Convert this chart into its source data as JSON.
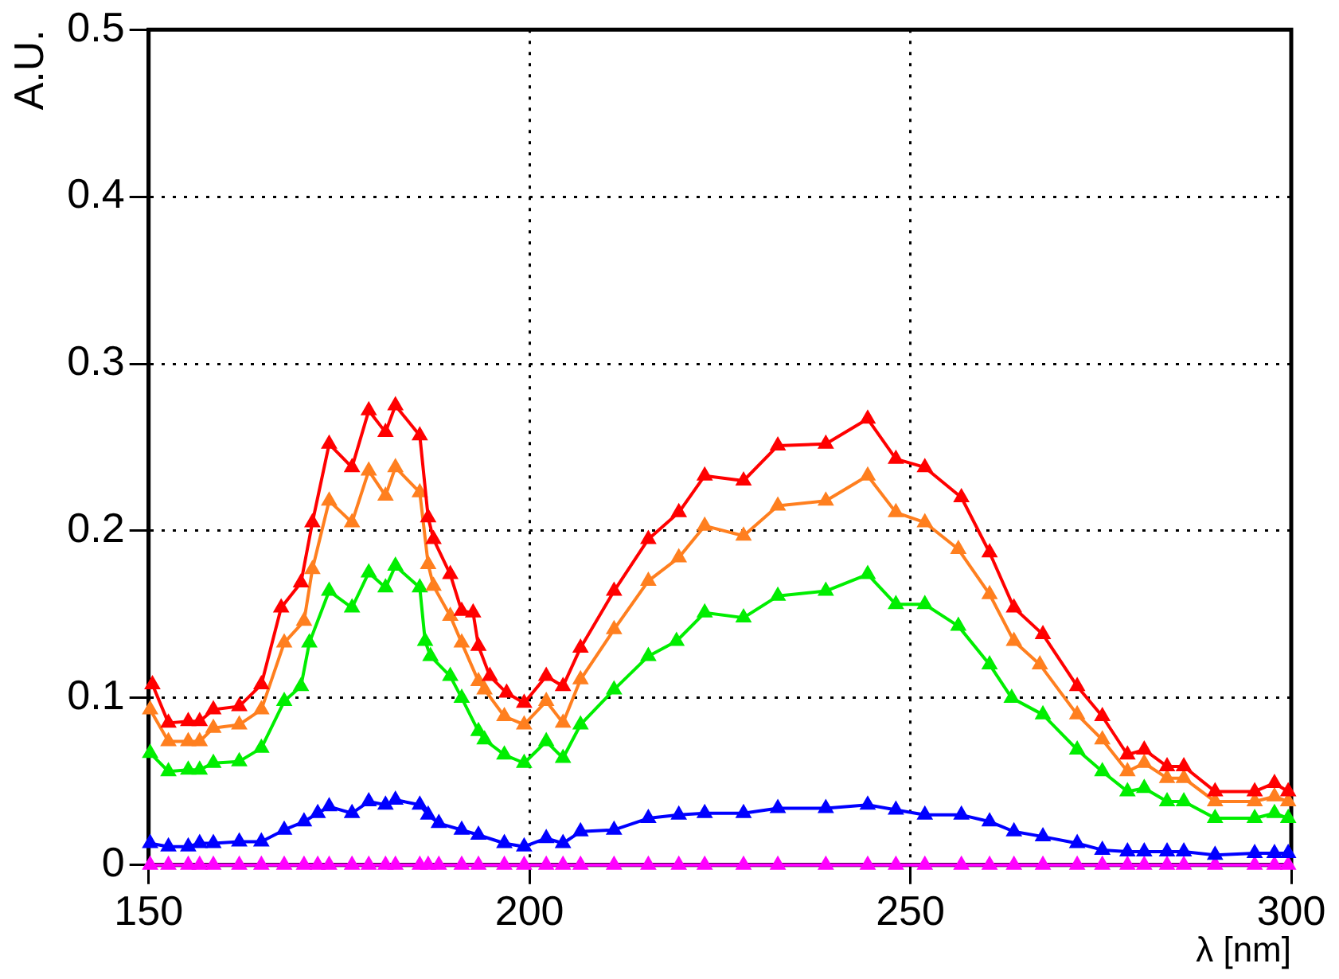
{
  "chart_data": {
    "type": "line",
    "xlabel": "λ [nm]",
    "ylabel": "A.U.",
    "xlim": [
      150,
      300
    ],
    "xticks": [
      150,
      200,
      250,
      300
    ],
    "ylim": [
      0,
      0.5
    ],
    "yticks": [
      0,
      0.1,
      0.2,
      0.3,
      0.4,
      0.5
    ],
    "grid": true,
    "legend": false,
    "marker": "triangle",
    "line_style": "solid",
    "series": [
      {
        "color": "#ff0000",
        "x": [
          150.5,
          152.6,
          155.2,
          156.7,
          158.5,
          161.9,
          164.8,
          167.4,
          170,
          171.5,
          173.7,
          176.7,
          178.9,
          181.1,
          182.4,
          185.6,
          186.7,
          187.4,
          189.6,
          191.1,
          192.6,
          193.3,
          194.8,
          197,
          199.3,
          202.2,
          204.4,
          206.7,
          211.1,
          215.6,
          219.6,
          223,
          228.1,
          232.6,
          238.9,
          244.4,
          248.1,
          251.9,
          256.7,
          260.4,
          263.6,
          267.4,
          271.9,
          275.2,
          278.5,
          280.7,
          283.7,
          285.9,
          290,
          295.2,
          297.8,
          299.6
        ],
        "values": [
          0.108,
          0.085,
          0.086,
          0.086,
          0.093,
          0.095,
          0.108,
          0.154,
          0.169,
          0.205,
          0.252,
          0.238,
          0.272,
          0.259,
          0.275,
          0.257,
          0.208,
          0.195,
          0.174,
          0.152,
          0.151,
          0.131,
          0.113,
          0.103,
          0.097,
          0.113,
          0.107,
          0.13,
          0.164,
          0.195,
          0.211,
          0.233,
          0.23,
          0.251,
          0.252,
          0.267,
          0.243,
          0.238,
          0.22,
          0.187,
          0.154,
          0.138,
          0.107,
          0.089,
          0.066,
          0.069,
          0.059,
          0.059,
          0.044,
          0.044,
          0.049,
          0.044
        ]
      },
      {
        "color": "#ff7f1f",
        "x": [
          150.2,
          152.6,
          155.2,
          156.7,
          158.5,
          161.9,
          164.8,
          167.8,
          170.4,
          171.5,
          173.7,
          176.7,
          178.9,
          181.1,
          182.4,
          185.6,
          186.7,
          187.4,
          189.6,
          191.1,
          193.3,
          194.1,
          196.7,
          199.3,
          202.2,
          204.4,
          206.7,
          211.1,
          215.6,
          219.6,
          223,
          228.1,
          232.6,
          238.9,
          244.4,
          248.1,
          251.9,
          256.3,
          260.4,
          263.6,
          267,
          271.9,
          275.2,
          278.5,
          280.7,
          283.7,
          285.9,
          290,
          295.2,
          297.8,
          299.6
        ],
        "values": [
          0.093,
          0.074,
          0.074,
          0.074,
          0.082,
          0.084,
          0.093,
          0.133,
          0.146,
          0.177,
          0.218,
          0.205,
          0.236,
          0.221,
          0.238,
          0.223,
          0.18,
          0.167,
          0.149,
          0.133,
          0.11,
          0.105,
          0.089,
          0.084,
          0.098,
          0.085,
          0.111,
          0.141,
          0.17,
          0.184,
          0.203,
          0.197,
          0.215,
          0.218,
          0.233,
          0.211,
          0.205,
          0.189,
          0.162,
          0.134,
          0.12,
          0.09,
          0.075,
          0.056,
          0.061,
          0.052,
          0.052,
          0.038,
          0.038,
          0.041,
          0.038
        ]
      },
      {
        "color": "#00ee00",
        "x": [
          150.2,
          152.6,
          155.2,
          156.7,
          158.5,
          161.9,
          164.8,
          167.8,
          170,
          171.1,
          173.7,
          176.7,
          178.9,
          181.1,
          182.4,
          185.6,
          186.3,
          187,
          189.6,
          191.1,
          193.3,
          194.1,
          196.7,
          199.3,
          202.2,
          204.4,
          206.7,
          211.1,
          215.6,
          219.3,
          223,
          228.1,
          232.6,
          238.9,
          244.4,
          248.1,
          251.9,
          256.3,
          260.4,
          263.3,
          267.4,
          271.9,
          275.2,
          278.5,
          280.7,
          283.7,
          285.9,
          290,
          295.2,
          297.8,
          299.6
        ],
        "values": [
          0.067,
          0.056,
          0.057,
          0.057,
          0.061,
          0.062,
          0.07,
          0.098,
          0.107,
          0.133,
          0.164,
          0.154,
          0.175,
          0.166,
          0.179,
          0.166,
          0.134,
          0.125,
          0.113,
          0.1,
          0.08,
          0.075,
          0.066,
          0.061,
          0.074,
          0.064,
          0.084,
          0.105,
          0.125,
          0.134,
          0.151,
          0.148,
          0.161,
          0.164,
          0.174,
          0.156,
          0.156,
          0.143,
          0.12,
          0.1,
          0.09,
          0.069,
          0.056,
          0.044,
          0.046,
          0.038,
          0.038,
          0.028,
          0.028,
          0.031,
          0.028
        ]
      },
      {
        "color": "#0000ff",
        "x": [
          150.2,
          152.6,
          155.2,
          156.7,
          158.5,
          161.9,
          164.8,
          167.8,
          170.4,
          172.2,
          173.7,
          176.7,
          178.9,
          181.1,
          182.4,
          185.6,
          186.7,
          188.1,
          191.1,
          193.3,
          196.7,
          199.3,
          202.2,
          204.4,
          206.7,
          211.1,
          215.6,
          219.6,
          223,
          228.1,
          232.6,
          238.9,
          244.4,
          248.1,
          251.9,
          256.7,
          260.4,
          263.6,
          267.4,
          271.9,
          275.2,
          278.5,
          280.7,
          283.7,
          285.9,
          290,
          295.2,
          297.8,
          299.6
        ],
        "values": [
          0.013,
          0.011,
          0.011,
          0.013,
          0.013,
          0.014,
          0.014,
          0.021,
          0.026,
          0.031,
          0.035,
          0.031,
          0.038,
          0.036,
          0.039,
          0.036,
          0.03,
          0.025,
          0.021,
          0.018,
          0.013,
          0.011,
          0.016,
          0.013,
          0.02,
          0.021,
          0.028,
          0.03,
          0.031,
          0.031,
          0.034,
          0.034,
          0.036,
          0.033,
          0.03,
          0.03,
          0.026,
          0.02,
          0.017,
          0.013,
          0.009,
          0.008,
          0.008,
          0.008,
          0.008,
          0.006,
          0.007,
          0.007,
          0.007
        ]
      },
      {
        "color": "#ff00ff",
        "x": [
          150.2,
          152.6,
          155.2,
          156.7,
          158.5,
          161.9,
          164.8,
          167.8,
          170.4,
          172.2,
          173.7,
          176.7,
          178.9,
          181.1,
          182.4,
          185.6,
          186.7,
          188.1,
          191.1,
          193.3,
          196.7,
          199.3,
          202.2,
          204.4,
          206.7,
          211.1,
          215.6,
          219.6,
          223,
          228.1,
          232.6,
          238.9,
          244.4,
          248.1,
          251.9,
          256.7,
          260.4,
          263.6,
          267.4,
          271.9,
          275.2,
          278.5,
          280.7,
          283.7,
          285.9,
          290,
          295.2,
          297.8,
          299.6
        ],
        "values": [
          0,
          0,
          0,
          0,
          0,
          0,
          0,
          0,
          0,
          0,
          0,
          0,
          0,
          0,
          0,
          0,
          0,
          0,
          0,
          0,
          0,
          0,
          0,
          0,
          0,
          0,
          0,
          0,
          0,
          0,
          0,
          0,
          0,
          0,
          0,
          0,
          0,
          0,
          0,
          0,
          0,
          0,
          0,
          0,
          0,
          0,
          0,
          0,
          0
        ]
      }
    ]
  }
}
